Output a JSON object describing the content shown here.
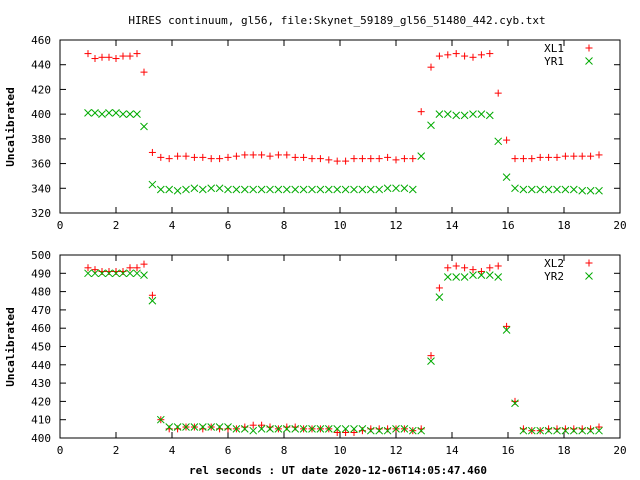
{
  "title": "HIRES continuum, gl56, file:Skynet_59189_gl56_51480_442.cyb.txt",
  "xlabel": "rel seconds : UT date 2020-12-06T14:05:47.460",
  "colors": {
    "red": "#ff0000",
    "green": "#00aa00",
    "frame": "#000000"
  },
  "chart_data": [
    {
      "type": "scatter",
      "ylabel": "Uncalibrated",
      "xlim": [
        0,
        20
      ],
      "ylim": [
        320,
        460
      ],
      "xticks": [
        0,
        2,
        4,
        6,
        8,
        10,
        12,
        14,
        16,
        18,
        20
      ],
      "yticks": [
        320,
        340,
        360,
        380,
        400,
        420,
        440,
        460
      ],
      "grid": false,
      "legend_position": "top-right",
      "series": [
        {
          "name": "XL1",
          "color": "#ff0000",
          "marker": "plus",
          "x": [
            1.0,
            1.25,
            1.5,
            1.75,
            2.0,
            2.25,
            2.5,
            2.75,
            3.0,
            3.3,
            3.6,
            3.9,
            4.2,
            4.5,
            4.8,
            5.1,
            5.4,
            5.7,
            6.0,
            6.3,
            6.6,
            6.9,
            7.2,
            7.5,
            7.8,
            8.1,
            8.4,
            8.7,
            9.0,
            9.3,
            9.6,
            9.9,
            10.2,
            10.5,
            10.8,
            11.1,
            11.4,
            11.7,
            12.0,
            12.3,
            12.6,
            12.9,
            13.25,
            13.55,
            13.85,
            14.15,
            14.45,
            14.75,
            15.05,
            15.35,
            15.65,
            15.95,
            16.25,
            16.55,
            16.85,
            17.15,
            17.45,
            17.75,
            18.05,
            18.35,
            18.65,
            18.95,
            19.25
          ],
          "y": [
            449,
            445,
            446,
            446,
            445,
            447,
            447,
            449,
            434,
            369,
            365,
            364,
            366,
            366,
            365,
            365,
            364,
            364,
            365,
            366,
            367,
            367,
            367,
            366,
            367,
            367,
            365,
            365,
            364,
            364,
            363,
            362,
            362,
            364,
            364,
            364,
            364,
            365,
            363,
            364,
            364,
            402,
            438,
            447,
            448,
            449,
            447,
            446,
            448,
            449,
            417,
            379,
            364,
            364,
            364,
            365,
            365,
            365,
            366,
            366,
            366,
            366,
            367
          ],
          "y_note": "values estimated from gridlines"
        },
        {
          "name": "YR1",
          "color": "#00aa00",
          "marker": "cross",
          "x": [
            1.0,
            1.25,
            1.5,
            1.75,
            2.0,
            2.25,
            2.5,
            2.75,
            3.0,
            3.3,
            3.6,
            3.9,
            4.2,
            4.5,
            4.8,
            5.1,
            5.4,
            5.7,
            6.0,
            6.3,
            6.6,
            6.9,
            7.2,
            7.5,
            7.8,
            8.1,
            8.4,
            8.7,
            9.0,
            9.3,
            9.6,
            9.9,
            10.2,
            10.5,
            10.8,
            11.1,
            11.4,
            11.7,
            12.0,
            12.3,
            12.6,
            12.9,
            13.25,
            13.55,
            13.85,
            14.15,
            14.45,
            14.75,
            15.05,
            15.35,
            15.65,
            15.95,
            16.25,
            16.55,
            16.85,
            17.15,
            17.45,
            17.75,
            18.05,
            18.35,
            18.65,
            18.95,
            19.25
          ],
          "y": [
            401,
            401,
            400,
            401,
            401,
            400,
            400,
            400,
            390,
            343,
            339,
            339,
            338,
            339,
            340,
            339,
            340,
            340,
            339,
            339,
            339,
            339,
            339,
            339,
            339,
            339,
            339,
            339,
            339,
            339,
            339,
            339,
            339,
            339,
            339,
            339,
            339,
            340,
            340,
            340,
            339,
            366,
            391,
            400,
            400,
            399,
            399,
            400,
            400,
            399,
            378,
            349,
            340,
            339,
            339,
            339,
            339,
            339,
            339,
            339,
            338,
            338,
            338
          ]
        }
      ]
    },
    {
      "type": "scatter",
      "ylabel": "Uncalibrated",
      "xlim": [
        0,
        20
      ],
      "ylim": [
        400,
        500
      ],
      "xticks": [
        0,
        2,
        4,
        6,
        8,
        10,
        12,
        14,
        16,
        18,
        20
      ],
      "yticks": [
        400,
        410,
        420,
        430,
        440,
        450,
        460,
        470,
        480,
        490,
        500
      ],
      "grid": false,
      "legend_position": "top-right",
      "series": [
        {
          "name": "XL2",
          "color": "#ff0000",
          "marker": "plus",
          "x": [
            1.0,
            1.25,
            1.5,
            1.75,
            2.0,
            2.25,
            2.5,
            2.75,
            3.0,
            3.3,
            3.6,
            3.9,
            4.2,
            4.5,
            4.8,
            5.1,
            5.4,
            5.7,
            6.0,
            6.3,
            6.6,
            6.9,
            7.2,
            7.5,
            7.8,
            8.1,
            8.4,
            8.7,
            9.0,
            9.3,
            9.6,
            9.9,
            10.2,
            10.5,
            10.8,
            11.1,
            11.4,
            11.7,
            12.0,
            12.3,
            12.6,
            12.9,
            13.25,
            13.55,
            13.85,
            14.15,
            14.45,
            14.75,
            15.05,
            15.35,
            15.65,
            15.95,
            16.25,
            16.55,
            16.85,
            17.15,
            17.45,
            17.75,
            18.05,
            18.35,
            18.65,
            18.95,
            19.25
          ],
          "y": [
            493,
            492,
            491,
            491,
            491,
            491,
            493,
            493,
            495,
            478,
            410,
            405,
            405,
            406,
            406,
            405,
            406,
            405,
            405,
            405,
            406,
            407,
            407,
            406,
            405,
            406,
            406,
            405,
            405,
            405,
            405,
            403,
            403,
            403,
            404,
            405,
            405,
            405,
            405,
            405,
            404,
            405,
            445,
            482,
            493,
            494,
            493,
            492,
            491,
            493,
            494,
            461,
            420,
            405,
            404,
            404,
            405,
            405,
            405,
            405,
            405,
            405,
            406
          ]
        },
        {
          "name": "YR2",
          "color": "#00aa00",
          "marker": "cross",
          "x": [
            1.0,
            1.25,
            1.5,
            1.75,
            2.0,
            2.25,
            2.5,
            2.75,
            3.0,
            3.3,
            3.6,
            3.9,
            4.2,
            4.5,
            4.8,
            5.1,
            5.4,
            5.7,
            6.0,
            6.3,
            6.6,
            6.9,
            7.2,
            7.5,
            7.8,
            8.1,
            8.4,
            8.7,
            9.0,
            9.3,
            9.6,
            9.9,
            10.2,
            10.5,
            10.8,
            11.1,
            11.4,
            11.7,
            12.0,
            12.3,
            12.6,
            12.9,
            13.25,
            13.55,
            13.85,
            14.15,
            14.45,
            14.75,
            15.05,
            15.35,
            15.65,
            15.95,
            16.25,
            16.55,
            16.85,
            17.15,
            17.45,
            17.75,
            18.05,
            18.35,
            18.65,
            18.95,
            19.25
          ],
          "y": [
            490,
            490,
            490,
            490,
            490,
            490,
            490,
            490,
            489,
            475,
            410,
            406,
            406,
            406,
            406,
            406,
            406,
            406,
            406,
            405,
            405,
            404,
            405,
            405,
            405,
            405,
            405,
            405,
            405,
            405,
            405,
            405,
            405,
            405,
            405,
            404,
            404,
            404,
            405,
            405,
            404,
            404,
            442,
            477,
            488,
            488,
            488,
            489,
            489,
            489,
            488,
            459,
            419,
            404,
            404,
            404,
            404,
            404,
            404,
            404,
            404,
            404,
            404
          ]
        }
      ]
    }
  ]
}
